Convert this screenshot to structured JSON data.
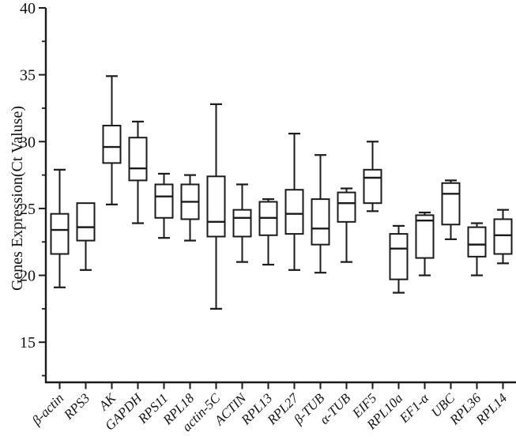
{
  "page": {
    "background": "#ffffff",
    "line_color": "#1b1b1b",
    "text_color": "#111111"
  },
  "chart_data": {
    "type": "box",
    "title": "",
    "xlabel": "",
    "ylabel": "Genes Expression(Ct Valuse)",
    "ylim": [
      12,
      40
    ],
    "yticks_major": [
      15,
      20,
      25,
      30,
      35,
      40
    ],
    "yticks_minor": [
      12.5,
      17.5,
      22.5,
      27.5,
      32.5,
      37.5
    ],
    "grid": false,
    "legend": "none",
    "box_fill": "#ffffff",
    "box_stroke": "#1b1b1b",
    "categories": [
      "β-actin",
      "RPS3",
      "AK",
      "GAPDH",
      "RPS11",
      "RPL18",
      "actin-5C",
      "ACTIN",
      "RPL13",
      "RPL27",
      "β-TUB",
      "α-TUB",
      "EIF5",
      "RPL10a",
      "EF1-α",
      "UBC",
      "RPL36",
      "RPL14"
    ],
    "series": [
      {
        "name": "β-actin",
        "whisker_low": 19.1,
        "q1": 21.6,
        "median": 23.4,
        "q3": 24.6,
        "whisker_high": 27.9
      },
      {
        "name": "RPS3",
        "whisker_low": 20.4,
        "q1": 22.6,
        "median": 23.6,
        "q3": 25.4,
        "whisker_high": 25.4
      },
      {
        "name": "AK",
        "whisker_low": 25.3,
        "q1": 28.4,
        "median": 29.6,
        "q3": 31.2,
        "whisker_high": 34.9
      },
      {
        "name": "GAPDH",
        "whisker_low": 23.9,
        "q1": 27.1,
        "median": 28.0,
        "q3": 30.3,
        "whisker_high": 31.5
      },
      {
        "name": "RPS11",
        "whisker_low": 22.8,
        "q1": 24.3,
        "median": 25.9,
        "q3": 26.8,
        "whisker_high": 27.6
      },
      {
        "name": "RPL18",
        "whisker_low": 22.6,
        "q1": 24.2,
        "median": 25.5,
        "q3": 26.8,
        "whisker_high": 27.5
      },
      {
        "name": "actin-5C",
        "whisker_low": 17.5,
        "q1": 22.9,
        "median": 24.0,
        "q3": 27.4,
        "whisker_high": 32.8
      },
      {
        "name": "ACTIN",
        "whisker_low": 21.0,
        "q1": 22.9,
        "median": 24.3,
        "q3": 24.9,
        "whisker_high": 26.8
      },
      {
        "name": "RPL13",
        "whisker_low": 20.8,
        "q1": 23.0,
        "median": 24.3,
        "q3": 25.5,
        "whisker_high": 25.7
      },
      {
        "name": "RPL27",
        "whisker_low": 20.4,
        "q1": 23.1,
        "median": 24.6,
        "q3": 26.4,
        "whisker_high": 30.6
      },
      {
        "name": "β-TUB",
        "whisker_low": 20.2,
        "q1": 22.3,
        "median": 23.5,
        "q3": 25.7,
        "whisker_high": 29.0
      },
      {
        "name": "α-TUB",
        "whisker_low": 21.0,
        "q1": 24.0,
        "median": 25.4,
        "q3": 26.2,
        "whisker_high": 26.5
      },
      {
        "name": "EIF5",
        "whisker_low": 24.8,
        "q1": 25.4,
        "median": 27.3,
        "q3": 27.9,
        "whisker_high": 30.0
      },
      {
        "name": "RPL10a",
        "whisker_low": 18.7,
        "q1": 19.7,
        "median": 22.0,
        "q3": 23.1,
        "whisker_high": 23.7
      },
      {
        "name": "EF1-α",
        "whisker_low": 20.0,
        "q1": 21.3,
        "median": 24.1,
        "q3": 24.5,
        "whisker_high": 24.7
      },
      {
        "name": "UBC",
        "whisker_low": 22.7,
        "q1": 23.8,
        "median": 26.1,
        "q3": 26.9,
        "whisker_high": 27.1
      },
      {
        "name": "RPL36",
        "whisker_low": 20.0,
        "q1": 21.4,
        "median": 22.3,
        "q3": 23.6,
        "whisker_high": 23.9
      },
      {
        "name": "RPL14",
        "whisker_low": 20.9,
        "q1": 21.6,
        "median": 23.0,
        "q3": 24.2,
        "whisker_high": 24.9
      }
    ]
  }
}
